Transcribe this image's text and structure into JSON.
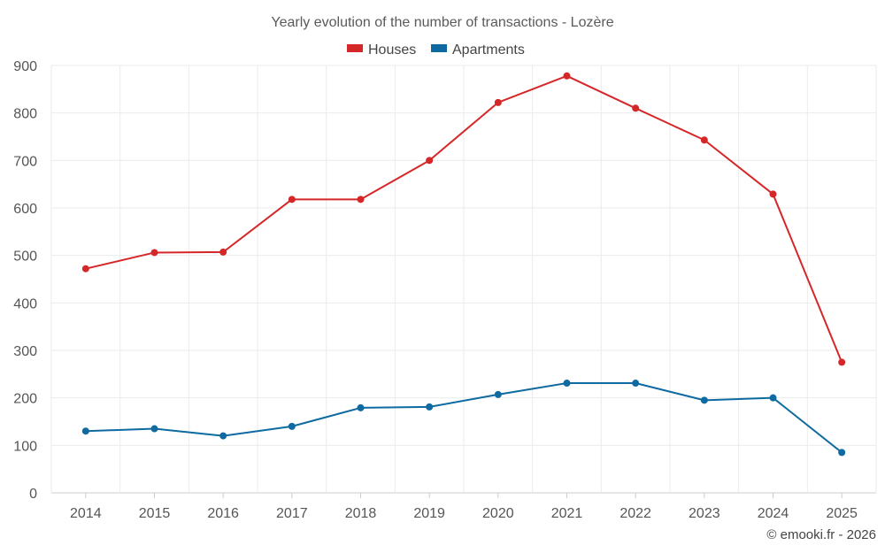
{
  "chart_data": {
    "type": "line",
    "title": "Yearly evolution of the number of transactions - Lozère",
    "categories": [
      "2014",
      "2015",
      "2016",
      "2017",
      "2018",
      "2019",
      "2020",
      "2021",
      "2022",
      "2023",
      "2024",
      "2025"
    ],
    "series": [
      {
        "name": "Houses",
        "color": "#d62728",
        "values": [
          472,
          506,
          507,
          618,
          618,
          700,
          822,
          878,
          810,
          743,
          629,
          275
        ]
      },
      {
        "name": "Apartments",
        "color": "#0e6aa0",
        "values": [
          130,
          135,
          120,
          140,
          179,
          181,
          207,
          231,
          231,
          195,
          200,
          85
        ]
      }
    ],
    "ylim": [
      0,
      900
    ],
    "yticks": [
      "0",
      "100",
      "200",
      "300",
      "400",
      "500",
      "600",
      "700",
      "800",
      "900"
    ],
    "xlabel": "",
    "ylabel": "",
    "grid": true,
    "legend_position": "top-center"
  },
  "credit": "© emooki.fr - 2026"
}
